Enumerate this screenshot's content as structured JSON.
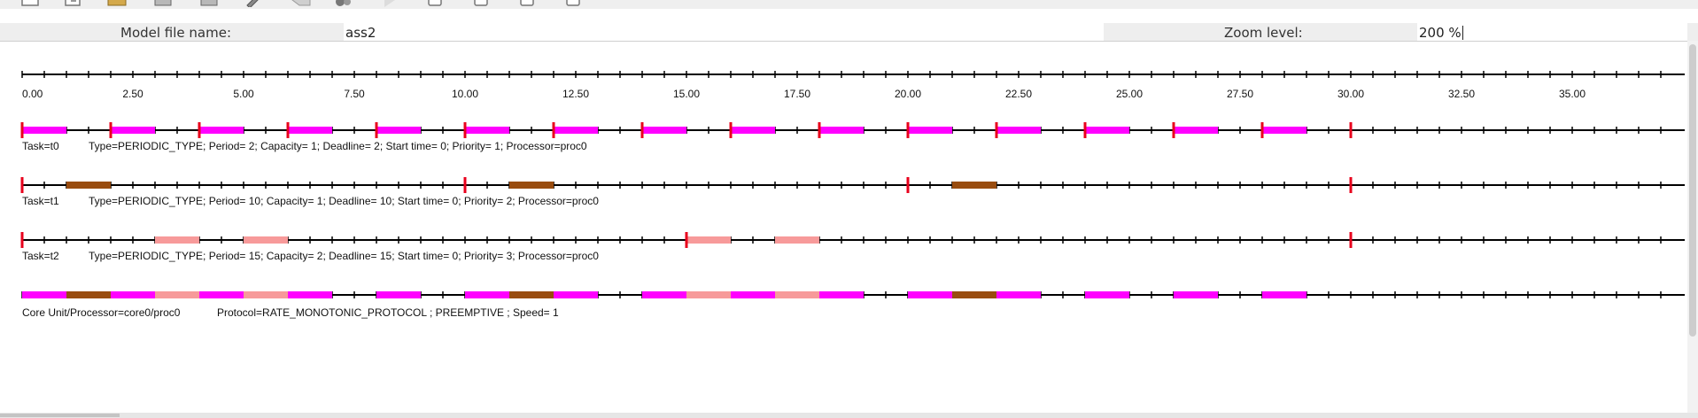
{
  "header": {
    "model_file_label": "Model file name:",
    "model_file_value": "ass2",
    "zoom_label": "Zoom level:",
    "zoom_value": "200 %"
  },
  "toolbar": {
    "icons": [
      "new-file-icon",
      "open-file-icon",
      "folder-icon",
      "save-icon",
      "save-as-icon",
      "edit-icon",
      "back-icon",
      "settings-icon",
      "play-icon",
      "checkbox-icon",
      "checkbox-icon",
      "checkbox-icon",
      "checkbox-icon"
    ]
  },
  "colors": {
    "axis": "#000000",
    "release_marker": "#e8001c",
    "t0": "#ff00ff",
    "t1": "#994c0f",
    "t2": "#f79a9a"
  },
  "chart_data": {
    "type": "timeline",
    "time_unit_ticks_per_label": 2.5,
    "axis_labels": [
      "0.00",
      "2.50",
      "5.00",
      "7.50",
      "10.00",
      "12.50",
      "15.00",
      "17.50",
      "20.00",
      "22.50",
      "25.00",
      "27.50",
      "30.00",
      "32.50",
      "35.00"
    ],
    "xlim": [
      0,
      37
    ],
    "rows": [
      {
        "id": "t0",
        "task_label": "Task=t0",
        "description": "Type=PERIODIC_TYPE; Period= 2; Capacity= 1; Deadline= 2; Start time= 0; Priority= 1; Processor=proc0",
        "color_key": "t0",
        "releases": [
          0,
          2,
          4,
          6,
          8,
          10,
          12,
          14,
          16,
          18,
          20,
          22,
          24,
          26,
          28,
          30
        ],
        "segments": [
          [
            0,
            1
          ],
          [
            2,
            3
          ],
          [
            4,
            5
          ],
          [
            6,
            7
          ],
          [
            8,
            9
          ],
          [
            10,
            11
          ],
          [
            12,
            13
          ],
          [
            14,
            15
          ],
          [
            16,
            17
          ],
          [
            18,
            19
          ],
          [
            20,
            21
          ],
          [
            22,
            23
          ],
          [
            24,
            25
          ],
          [
            26,
            27
          ],
          [
            28,
            29
          ]
        ]
      },
      {
        "id": "t1",
        "task_label": "Task=t1",
        "description": "Type=PERIODIC_TYPE; Period= 10; Capacity= 1; Deadline= 10; Start time= 0; Priority= 2; Processor=proc0",
        "color_key": "t1",
        "releases": [
          0,
          10,
          20,
          30
        ],
        "segments": [
          [
            1,
            2
          ],
          [
            11,
            12
          ],
          [
            21,
            22
          ]
        ]
      },
      {
        "id": "t2",
        "task_label": "Task=t2",
        "description": "Type=PERIODIC_TYPE; Period= 15; Capacity= 2; Deadline= 15; Start time= 0; Priority= 3; Processor=proc0",
        "color_key": "t2",
        "releases": [
          0,
          15,
          30
        ],
        "segments": [
          [
            3,
            4
          ],
          [
            5,
            6
          ],
          [
            15,
            16
          ],
          [
            17,
            18
          ]
        ]
      }
    ],
    "processor": {
      "label": "Core Unit/Processor=core0/proc0",
      "description": "Protocol=RATE_MONOTONIC_PROTOCOL ; PREEMPTIVE ; Speed= 1",
      "segments": [
        [
          0,
          1,
          "t0"
        ],
        [
          1,
          2,
          "t1"
        ],
        [
          2,
          3,
          "t0"
        ],
        [
          3,
          4,
          "t2"
        ],
        [
          4,
          5,
          "t0"
        ],
        [
          5,
          6,
          "t2"
        ],
        [
          6,
          7,
          "t0"
        ],
        [
          8,
          9,
          "t0"
        ],
        [
          10,
          11,
          "t0"
        ],
        [
          11,
          12,
          "t1"
        ],
        [
          12,
          13,
          "t0"
        ],
        [
          14,
          15,
          "t0"
        ],
        [
          15,
          16,
          "t2"
        ],
        [
          16,
          17,
          "t0"
        ],
        [
          17,
          18,
          "t2"
        ],
        [
          18,
          19,
          "t0"
        ],
        [
          20,
          21,
          "t0"
        ],
        [
          21,
          22,
          "t1"
        ],
        [
          22,
          23,
          "t0"
        ],
        [
          24,
          25,
          "t0"
        ],
        [
          26,
          27,
          "t0"
        ],
        [
          28,
          29,
          "t0"
        ]
      ]
    }
  }
}
